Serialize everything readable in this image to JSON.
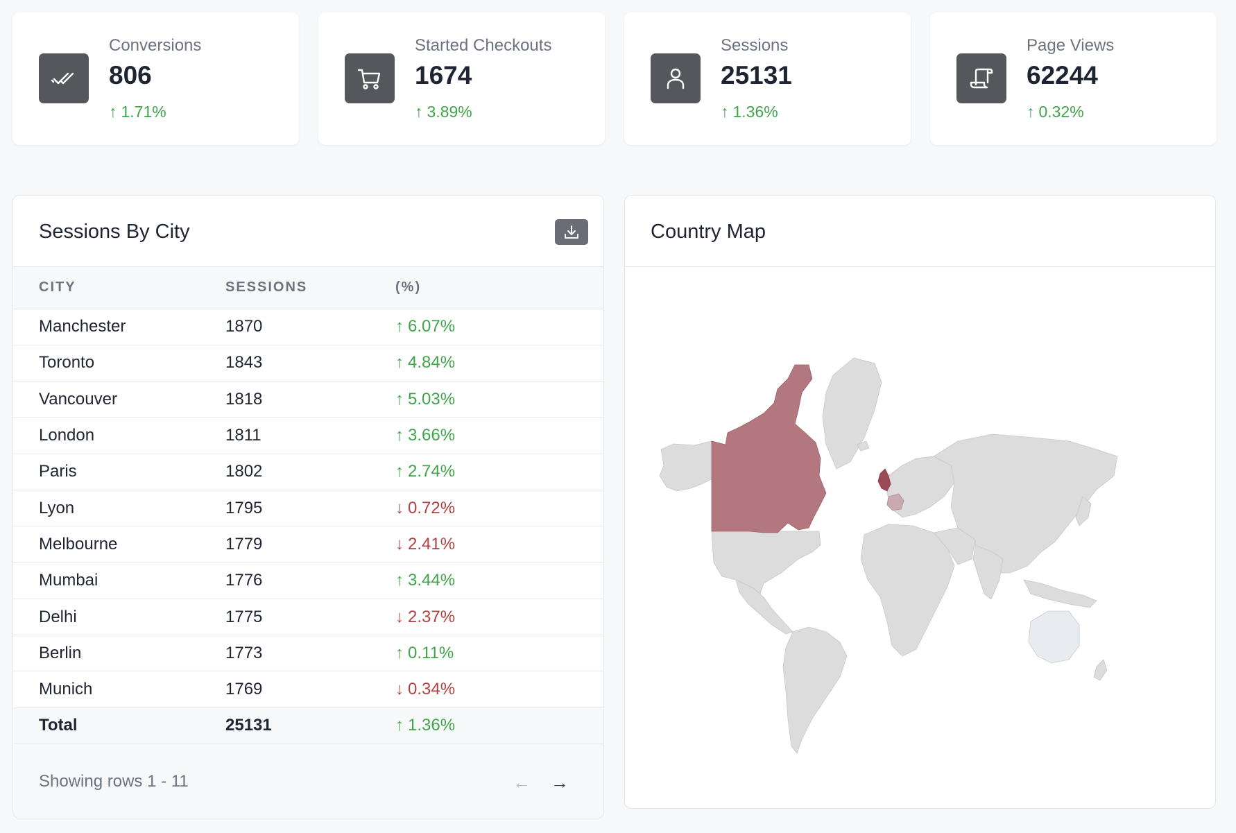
{
  "kpis": [
    {
      "label": "Conversions",
      "value": "806",
      "delta": "1.71%",
      "direction": "up",
      "icon": "double-check-icon"
    },
    {
      "label": "Started Checkouts",
      "value": "1674",
      "delta": "3.89%",
      "direction": "up",
      "icon": "cart-icon"
    },
    {
      "label": "Sessions",
      "value": "25131",
      "delta": "1.36%",
      "direction": "up",
      "icon": "user-icon"
    },
    {
      "label": "Page Views",
      "value": "62244",
      "delta": "0.32%",
      "direction": "up",
      "icon": "scroll-icon"
    }
  ],
  "sessions_table": {
    "title": "Sessions By City",
    "download_icon": "download-icon",
    "columns": [
      "CITY",
      "SESSIONS",
      "(%)"
    ],
    "rows": [
      {
        "city": "Manchester",
        "sessions": "1870",
        "change": "6.07%",
        "direction": "up"
      },
      {
        "city": "Toronto",
        "sessions": "1843",
        "change": "4.84%",
        "direction": "up"
      },
      {
        "city": "Vancouver",
        "sessions": "1818",
        "change": "5.03%",
        "direction": "up"
      },
      {
        "city": "London",
        "sessions": "1811",
        "change": "3.66%",
        "direction": "up"
      },
      {
        "city": "Paris",
        "sessions": "1802",
        "change": "2.74%",
        "direction": "up"
      },
      {
        "city": "Lyon",
        "sessions": "1795",
        "change": "0.72%",
        "direction": "down"
      },
      {
        "city": "Melbourne",
        "sessions": "1779",
        "change": "2.41%",
        "direction": "down"
      },
      {
        "city": "Mumbai",
        "sessions": "1776",
        "change": "3.44%",
        "direction": "up"
      },
      {
        "city": "Delhi",
        "sessions": "1775",
        "change": "2.37%",
        "direction": "down"
      },
      {
        "city": "Berlin",
        "sessions": "1773",
        "change": "0.11%",
        "direction": "up"
      },
      {
        "city": "Munich",
        "sessions": "1769",
        "change": "0.34%",
        "direction": "down"
      }
    ],
    "total": {
      "label": "Total",
      "sessions": "25131",
      "change": "1.36%",
      "direction": "up"
    },
    "footer": {
      "showing": "Showing rows 1 - 11",
      "prev_icon": "arrow-left-icon",
      "next_icon": "arrow-right-icon"
    }
  },
  "country_map": {
    "title": "Country Map",
    "highlight_color": "#b3787f",
    "base_color": "#dcdcdc",
    "light_color": "#e8ecf0"
  },
  "colors": {
    "up": "#3fa549",
    "down": "#b4403f",
    "icon_bg": "#55575c"
  }
}
